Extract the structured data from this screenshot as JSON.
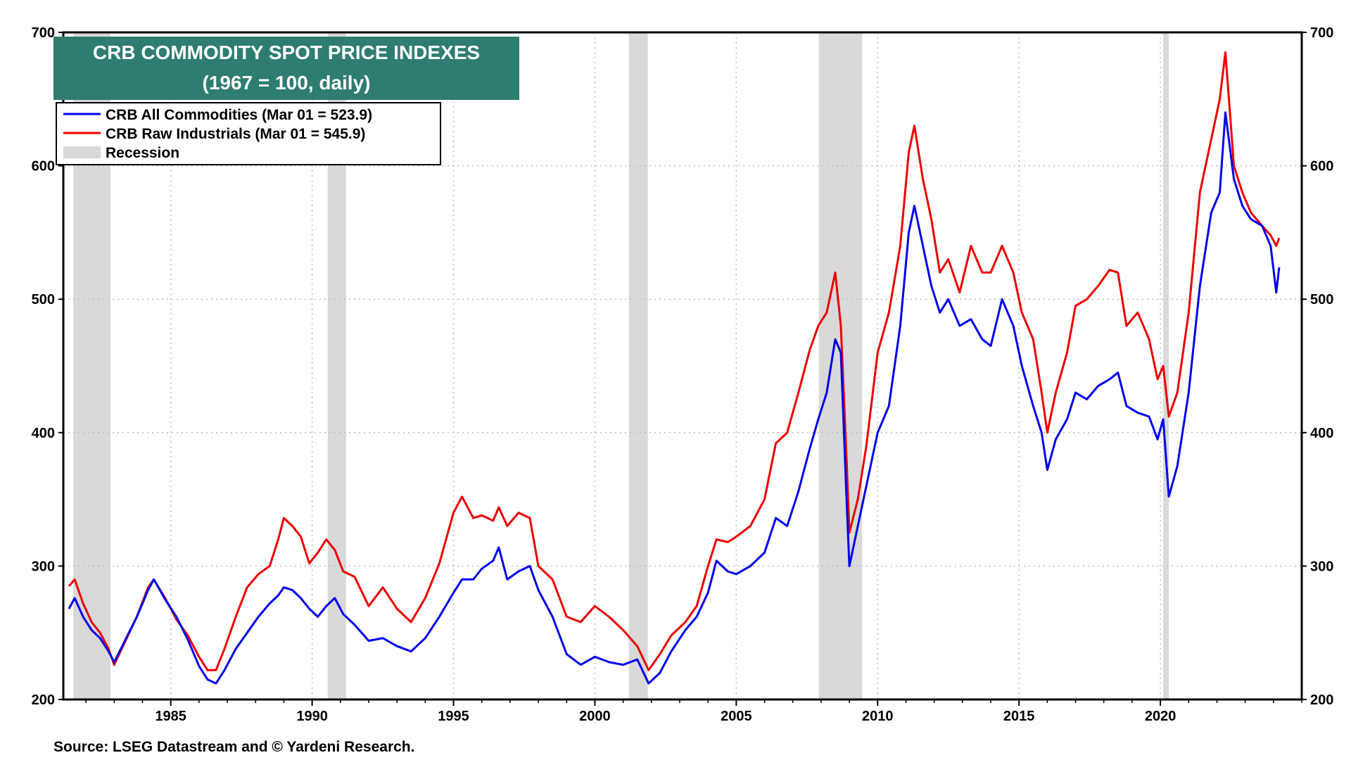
{
  "chart_data": {
    "type": "line",
    "title": "CRB COMMODITY SPOT PRICE INDEXES",
    "subtitle": "(1967 = 100, daily)",
    "source": "Source: LSEG Datastream and © Yardeni Research.",
    "xlim": [
      1981.2,
      2025.0
    ],
    "ylim": [
      200,
      700
    ],
    "x_ticks": [
      1985,
      1990,
      1995,
      2000,
      2005,
      2010,
      2015,
      2020
    ],
    "x_tick_labels": [
      "1985",
      "1990",
      "1995",
      "2000",
      "2005",
      "2010",
      "2015",
      "2020"
    ],
    "y_ticks": [
      200,
      300,
      400,
      500,
      600,
      700
    ],
    "y_tick_labels": [
      "200",
      "300",
      "400",
      "500",
      "600",
      "700"
    ],
    "grid": true,
    "legend_position": "top-left",
    "recession_label": "Recession",
    "recessions": [
      [
        1981.55,
        1982.87
      ],
      [
        1990.55,
        1991.2
      ],
      [
        2001.2,
        2001.87
      ],
      [
        2007.92,
        2009.45
      ],
      [
        2020.1,
        2020.3
      ]
    ],
    "series": [
      {
        "name": "CRB All Commodities (Mar 01 = 523.9)",
        "color": "#0000ee",
        "points": [
          [
            1981.4,
            268
          ],
          [
            1981.6,
            276
          ],
          [
            1981.9,
            262
          ],
          [
            1982.2,
            252
          ],
          [
            1982.5,
            246
          ],
          [
            1982.8,
            236
          ],
          [
            1983.0,
            228
          ],
          [
            1983.4,
            245
          ],
          [
            1983.8,
            262
          ],
          [
            1984.2,
            282
          ],
          [
            1984.4,
            290
          ],
          [
            1984.8,
            275
          ],
          [
            1985.2,
            262
          ],
          [
            1985.6,
            245
          ],
          [
            1986.0,
            225
          ],
          [
            1986.3,
            215
          ],
          [
            1986.6,
            212
          ],
          [
            1986.9,
            222
          ],
          [
            1987.3,
            238
          ],
          [
            1987.7,
            250
          ],
          [
            1988.1,
            262
          ],
          [
            1988.5,
            272
          ],
          [
            1988.8,
            278
          ],
          [
            1989.0,
            284
          ],
          [
            1989.3,
            282
          ],
          [
            1989.6,
            276
          ],
          [
            1989.9,
            268
          ],
          [
            1990.2,
            262
          ],
          [
            1990.5,
            270
          ],
          [
            1990.8,
            276
          ],
          [
            1991.1,
            264
          ],
          [
            1991.5,
            256
          ],
          [
            1992.0,
            244
          ],
          [
            1992.5,
            246
          ],
          [
            1993.0,
            240
          ],
          [
            1993.5,
            236
          ],
          [
            1994.0,
            246
          ],
          [
            1994.5,
            262
          ],
          [
            1995.0,
            280
          ],
          [
            1995.3,
            290
          ],
          [
            1995.7,
            290
          ],
          [
            1996.0,
            298
          ],
          [
            1996.4,
            304
          ],
          [
            1996.6,
            314
          ],
          [
            1996.9,
            290
          ],
          [
            1997.3,
            296
          ],
          [
            1997.7,
            300
          ],
          [
            1998.0,
            282
          ],
          [
            1998.5,
            262
          ],
          [
            1999.0,
            234
          ],
          [
            1999.5,
            226
          ],
          [
            2000.0,
            232
          ],
          [
            2000.5,
            228
          ],
          [
            2001.0,
            226
          ],
          [
            2001.5,
            230
          ],
          [
            2001.9,
            212
          ],
          [
            2002.3,
            220
          ],
          [
            2002.7,
            236
          ],
          [
            2003.2,
            252
          ],
          [
            2003.6,
            262
          ],
          [
            2004.0,
            280
          ],
          [
            2004.3,
            304
          ],
          [
            2004.7,
            296
          ],
          [
            2005.0,
            294
          ],
          [
            2005.5,
            300
          ],
          [
            2006.0,
            310
          ],
          [
            2006.4,
            336
          ],
          [
            2006.8,
            330
          ],
          [
            2007.2,
            356
          ],
          [
            2007.6,
            388
          ],
          [
            2007.9,
            410
          ],
          [
            2008.2,
            430
          ],
          [
            2008.5,
            470
          ],
          [
            2008.7,
            460
          ],
          [
            2008.9,
            350
          ],
          [
            2009.0,
            300
          ],
          [
            2009.3,
            330
          ],
          [
            2009.6,
            360
          ],
          [
            2010.0,
            400
          ],
          [
            2010.4,
            420
          ],
          [
            2010.8,
            480
          ],
          [
            2011.1,
            550
          ],
          [
            2011.3,
            570
          ],
          [
            2011.6,
            540
          ],
          [
            2011.9,
            510
          ],
          [
            2012.2,
            490
          ],
          [
            2012.5,
            500
          ],
          [
            2012.9,
            480
          ],
          [
            2013.3,
            485
          ],
          [
            2013.7,
            470
          ],
          [
            2014.0,
            465
          ],
          [
            2014.4,
            500
          ],
          [
            2014.8,
            480
          ],
          [
            2015.1,
            450
          ],
          [
            2015.5,
            420
          ],
          [
            2015.8,
            400
          ],
          [
            2016.0,
            372
          ],
          [
            2016.3,
            395
          ],
          [
            2016.7,
            410
          ],
          [
            2017.0,
            430
          ],
          [
            2017.4,
            425
          ],
          [
            2017.8,
            435
          ],
          [
            2018.2,
            440
          ],
          [
            2018.5,
            445
          ],
          [
            2018.8,
            420
          ],
          [
            2019.2,
            415
          ],
          [
            2019.6,
            412
          ],
          [
            2019.9,
            395
          ],
          [
            2020.1,
            410
          ],
          [
            2020.3,
            352
          ],
          [
            2020.6,
            375
          ],
          [
            2021.0,
            430
          ],
          [
            2021.4,
            510
          ],
          [
            2021.8,
            565
          ],
          [
            2022.1,
            580
          ],
          [
            2022.3,
            640
          ],
          [
            2022.6,
            590
          ],
          [
            2022.9,
            570
          ],
          [
            2023.2,
            560
          ],
          [
            2023.6,
            555
          ],
          [
            2023.9,
            540
          ],
          [
            2024.1,
            505
          ],
          [
            2024.2,
            523.9
          ]
        ]
      },
      {
        "name": "CRB Raw Industrials (Mar 01 = 545.9)",
        "color": "#ee0000",
        "points": [
          [
            1981.4,
            285
          ],
          [
            1981.6,
            290
          ],
          [
            1981.9,
            272
          ],
          [
            1982.2,
            258
          ],
          [
            1982.5,
            250
          ],
          [
            1982.8,
            238
          ],
          [
            1983.0,
            226
          ],
          [
            1983.4,
            244
          ],
          [
            1983.8,
            262
          ],
          [
            1984.2,
            284
          ],
          [
            1984.4,
            290
          ],
          [
            1984.8,
            276
          ],
          [
            1985.2,
            260
          ],
          [
            1985.6,
            248
          ],
          [
            1986.0,
            232
          ],
          [
            1986.3,
            222
          ],
          [
            1986.6,
            222
          ],
          [
            1986.9,
            238
          ],
          [
            1987.3,
            262
          ],
          [
            1987.7,
            284
          ],
          [
            1988.1,
            294
          ],
          [
            1988.5,
            300
          ],
          [
            1988.8,
            320
          ],
          [
            1989.0,
            336
          ],
          [
            1989.3,
            330
          ],
          [
            1989.6,
            322
          ],
          [
            1989.9,
            302
          ],
          [
            1990.2,
            310
          ],
          [
            1990.5,
            320
          ],
          [
            1990.8,
            312
          ],
          [
            1991.1,
            296
          ],
          [
            1991.5,
            292
          ],
          [
            1992.0,
            270
          ],
          [
            1992.5,
            284
          ],
          [
            1993.0,
            268
          ],
          [
            1993.5,
            258
          ],
          [
            1994.0,
            276
          ],
          [
            1994.5,
            302
          ],
          [
            1995.0,
            340
          ],
          [
            1995.3,
            352
          ],
          [
            1995.7,
            336
          ],
          [
            1996.0,
            338
          ],
          [
            1996.4,
            334
          ],
          [
            1996.6,
            344
          ],
          [
            1996.9,
            330
          ],
          [
            1997.3,
            340
          ],
          [
            1997.7,
            336
          ],
          [
            1998.0,
            300
          ],
          [
            1998.5,
            290
          ],
          [
            1999.0,
            262
          ],
          [
            1999.5,
            258
          ],
          [
            2000.0,
            270
          ],
          [
            2000.5,
            262
          ],
          [
            2001.0,
            252
          ],
          [
            2001.5,
            240
          ],
          [
            2001.9,
            222
          ],
          [
            2002.3,
            234
          ],
          [
            2002.7,
            248
          ],
          [
            2003.2,
            258
          ],
          [
            2003.6,
            270
          ],
          [
            2004.0,
            300
          ],
          [
            2004.3,
            320
          ],
          [
            2004.7,
            318
          ],
          [
            2005.0,
            322
          ],
          [
            2005.5,
            330
          ],
          [
            2006.0,
            350
          ],
          [
            2006.4,
            392
          ],
          [
            2006.8,
            400
          ],
          [
            2007.2,
            430
          ],
          [
            2007.6,
            462
          ],
          [
            2007.9,
            480
          ],
          [
            2008.2,
            490
          ],
          [
            2008.5,
            520
          ],
          [
            2008.7,
            480
          ],
          [
            2008.9,
            380
          ],
          [
            2009.0,
            325
          ],
          [
            2009.3,
            350
          ],
          [
            2009.6,
            390
          ],
          [
            2010.0,
            460
          ],
          [
            2010.4,
            490
          ],
          [
            2010.8,
            540
          ],
          [
            2011.1,
            610
          ],
          [
            2011.3,
            630
          ],
          [
            2011.6,
            590
          ],
          [
            2011.9,
            560
          ],
          [
            2012.2,
            520
          ],
          [
            2012.5,
            530
          ],
          [
            2012.9,
            505
          ],
          [
            2013.3,
            540
          ],
          [
            2013.7,
            520
          ],
          [
            2014.0,
            520
          ],
          [
            2014.4,
            540
          ],
          [
            2014.8,
            520
          ],
          [
            2015.1,
            490
          ],
          [
            2015.5,
            470
          ],
          [
            2015.8,
            430
          ],
          [
            2016.0,
            400
          ],
          [
            2016.3,
            430
          ],
          [
            2016.7,
            460
          ],
          [
            2017.0,
            495
          ],
          [
            2017.4,
            500
          ],
          [
            2017.8,
            510
          ],
          [
            2018.2,
            522
          ],
          [
            2018.5,
            520
          ],
          [
            2018.8,
            480
          ],
          [
            2019.2,
            490
          ],
          [
            2019.6,
            470
          ],
          [
            2019.9,
            440
          ],
          [
            2020.1,
            450
          ],
          [
            2020.3,
            412
          ],
          [
            2020.6,
            430
          ],
          [
            2021.0,
            490
          ],
          [
            2021.4,
            580
          ],
          [
            2021.8,
            620
          ],
          [
            2022.1,
            650
          ],
          [
            2022.3,
            685
          ],
          [
            2022.6,
            600
          ],
          [
            2022.9,
            580
          ],
          [
            2023.2,
            565
          ],
          [
            2023.6,
            555
          ],
          [
            2023.9,
            548
          ],
          [
            2024.1,
            540
          ],
          [
            2024.2,
            545.9
          ]
        ]
      }
    ]
  }
}
